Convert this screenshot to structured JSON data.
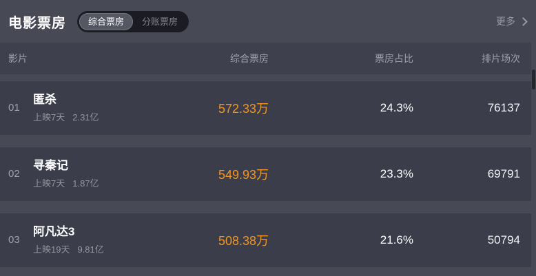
{
  "header": {
    "title": "电影票房",
    "tabs": [
      {
        "label": "综合票房",
        "active": true
      },
      {
        "label": "分账票房",
        "active": false
      }
    ],
    "more_label": "更多"
  },
  "table": {
    "columns": [
      "影片",
      "综合票房",
      "票房占比",
      "排片场次"
    ],
    "rows": [
      {
        "rank": "01",
        "title": "匿杀",
        "release": "上映7天",
        "total": "2.31亿",
        "box_office": "572.33万",
        "share": "24.3%",
        "sessions": "76137"
      },
      {
        "rank": "02",
        "title": "寻秦记",
        "release": "上映7天",
        "total": "1.87亿",
        "box_office": "549.93万",
        "share": "23.3%",
        "sessions": "69791"
      },
      {
        "rank": "03",
        "title": "阿凡达3",
        "release": "上映19天",
        "total": "9.81亿",
        "box_office": "508.38万",
        "share": "21.6%",
        "sessions": "50794"
      }
    ]
  },
  "colors": {
    "page_bg": "#474955",
    "panel_bg": "#3b3d4a",
    "header_band_bg": "#3e404d",
    "toggle_bg": "#1b1c23",
    "active_tab_bg": "#555763",
    "accent_orange": "#f2941f",
    "muted_text": "#9da0aa",
    "white_text": "#ffffff"
  }
}
